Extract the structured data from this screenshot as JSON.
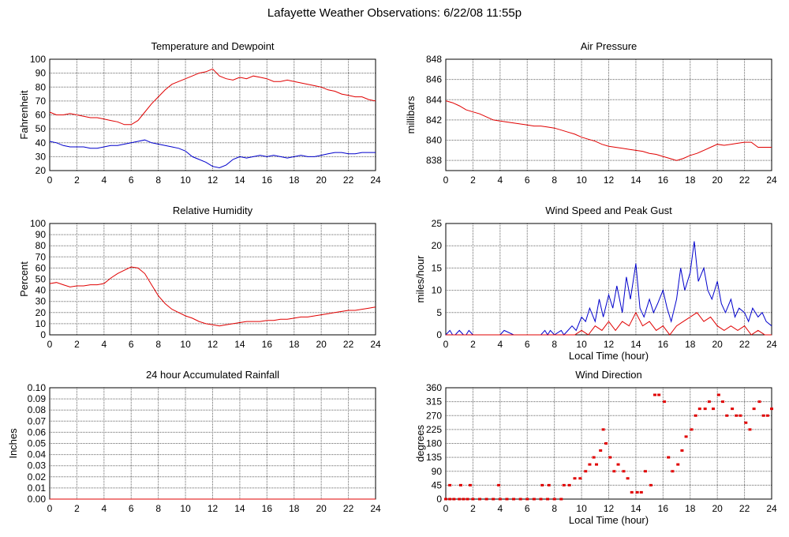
{
  "page_title": "Lafayette Weather Observations: 6/22/08 11:55p",
  "colors": {
    "red": "#e00000",
    "blue": "#0000cc",
    "grid": "#666666"
  },
  "chart_data": [
    {
      "id": "temp",
      "type": "line",
      "title": "Temperature and Dewpoint",
      "ylabel": "Fahrenheit",
      "xlabel": "",
      "xlim": [
        0,
        24
      ],
      "ylim": [
        20,
        100
      ],
      "xticks": [
        0,
        2,
        4,
        6,
        8,
        10,
        12,
        14,
        16,
        18,
        20,
        22,
        24
      ],
      "yticks": [
        20,
        30,
        40,
        50,
        60,
        70,
        80,
        90,
        100
      ],
      "series": [
        {
          "color": "red",
          "x": [
            0,
            0.5,
            1,
            1.5,
            2,
            2.5,
            3,
            3.5,
            4,
            4.5,
            5,
            5.5,
            6,
            6.5,
            7,
            7.5,
            8,
            8.5,
            9,
            9.5,
            10,
            10.5,
            11,
            11.5,
            12,
            12.5,
            13,
            13.5,
            14,
            14.5,
            15,
            15.5,
            16,
            16.5,
            17,
            17.5,
            18,
            18.5,
            19,
            19.5,
            20,
            20.5,
            21,
            21.5,
            22,
            22.5,
            23,
            23.5,
            24
          ],
          "y": [
            62,
            60,
            60,
            61,
            60,
            59,
            58,
            58,
            57,
            56,
            55,
            53,
            53,
            56,
            62,
            68,
            73,
            78,
            82,
            84,
            86,
            88,
            90,
            91,
            93,
            88,
            86,
            85,
            87,
            86,
            88,
            87,
            86,
            84,
            84,
            85,
            84,
            83,
            82,
            81,
            80,
            78,
            77,
            75,
            74,
            73,
            73,
            71,
            70
          ]
        },
        {
          "color": "blue",
          "x": [
            0,
            0.5,
            1,
            1.5,
            2,
            2.5,
            3,
            3.5,
            4,
            4.5,
            5,
            5.5,
            6,
            6.5,
            7,
            7.5,
            8,
            8.5,
            9,
            9.5,
            10,
            10.5,
            11,
            11.5,
            12,
            12.5,
            13,
            13.5,
            14,
            14.5,
            15,
            15.5,
            16,
            16.5,
            17,
            17.5,
            18,
            18.5,
            19,
            19.5,
            20,
            20.5,
            21,
            21.5,
            22,
            22.5,
            23,
            23.5,
            24
          ],
          "y": [
            41,
            40,
            38,
            37,
            37,
            37,
            36,
            36,
            37,
            38,
            38,
            39,
            40,
            41,
            42,
            40,
            39,
            38,
            37,
            36,
            34,
            30,
            28,
            26,
            23,
            22,
            24,
            28,
            30,
            29,
            30,
            31,
            30,
            31,
            30,
            29,
            30,
            31,
            30,
            30,
            31,
            32,
            33,
            33,
            32,
            32,
            33,
            33,
            33
          ]
        }
      ]
    },
    {
      "id": "press",
      "type": "line",
      "title": "Air Pressure",
      "ylabel": "millibars",
      "xlabel": "",
      "xlim": [
        0,
        24
      ],
      "ylim": [
        837,
        848
      ],
      "xticks": [
        0,
        2,
        4,
        6,
        8,
        10,
        12,
        14,
        16,
        18,
        20,
        22,
        24
      ],
      "yticks": [
        838,
        840,
        842,
        844,
        846,
        848
      ],
      "series": [
        {
          "color": "red",
          "x": [
            0,
            0.5,
            1,
            1.5,
            2,
            2.5,
            3,
            3.5,
            4,
            4.5,
            5,
            5.5,
            6,
            6.5,
            7,
            7.5,
            8,
            8.5,
            9,
            9.5,
            10,
            10.5,
            11,
            11.5,
            12,
            12.5,
            13,
            13.5,
            14,
            14.5,
            15,
            15.5,
            16,
            16.5,
            17,
            17.5,
            18,
            18.5,
            19,
            19.5,
            20,
            20.5,
            21,
            21.5,
            22,
            22.5,
            23,
            23.5,
            24
          ],
          "y": [
            843.9,
            843.7,
            843.4,
            843.0,
            842.8,
            842.6,
            842.3,
            842.0,
            841.9,
            841.8,
            841.7,
            841.6,
            841.5,
            841.4,
            841.4,
            841.3,
            841.2,
            841.0,
            840.8,
            840.6,
            840.3,
            840.1,
            839.9,
            839.6,
            839.4,
            839.3,
            839.2,
            839.1,
            839.0,
            838.9,
            838.7,
            838.6,
            838.4,
            838.2,
            838.0,
            838.2,
            838.5,
            838.7,
            839.0,
            839.3,
            839.6,
            839.5,
            839.6,
            839.7,
            839.8,
            839.8,
            839.3,
            839.3,
            839.3
          ]
        }
      ]
    },
    {
      "id": "rh",
      "type": "line",
      "title": "Relative Humidity",
      "ylabel": "Percent",
      "xlabel": "",
      "xlim": [
        0,
        24
      ],
      "ylim": [
        0,
        100
      ],
      "xticks": [
        0,
        2,
        4,
        6,
        8,
        10,
        12,
        14,
        16,
        18,
        20,
        22,
        24
      ],
      "yticks": [
        0,
        10,
        20,
        30,
        40,
        50,
        60,
        70,
        80,
        90,
        100
      ],
      "series": [
        {
          "color": "red",
          "x": [
            0,
            0.5,
            1,
            1.5,
            2,
            2.5,
            3,
            3.5,
            4,
            4.5,
            5,
            5.5,
            6,
            6.5,
            7,
            7.5,
            8,
            8.5,
            9,
            9.5,
            10,
            10.5,
            11,
            11.5,
            12,
            12.5,
            13,
            13.5,
            14,
            14.5,
            15,
            15.5,
            16,
            16.5,
            17,
            17.5,
            18,
            18.5,
            19,
            19.5,
            20,
            20.5,
            21,
            21.5,
            22,
            22.5,
            23,
            23.5,
            24
          ],
          "y": [
            46,
            47,
            45,
            43,
            44,
            44,
            45,
            45,
            46,
            51,
            55,
            58,
            61,
            60,
            55,
            45,
            35,
            28,
            23,
            20,
            17,
            15,
            12,
            10,
            9,
            8,
            9,
            10,
            11,
            12,
            12,
            12,
            13,
            13,
            14,
            14,
            15,
            16,
            16,
            17,
            18,
            19,
            20,
            21,
            22,
            22,
            23,
            24,
            25
          ]
        }
      ]
    },
    {
      "id": "wind",
      "type": "line",
      "title": "Wind Speed and Peak Gust",
      "ylabel": "miles/hour",
      "xlabel": "Local Time (hour)",
      "xlim": [
        0,
        24
      ],
      "ylim": [
        0,
        25
      ],
      "xticks": [
        0,
        2,
        4,
        6,
        8,
        10,
        12,
        14,
        16,
        18,
        20,
        22,
        24
      ],
      "yticks": [
        0,
        5,
        10,
        15,
        20,
        25
      ],
      "series": [
        {
          "color": "blue",
          "x": [
            0,
            0.3,
            0.5,
            0.7,
            1,
            1.3,
            1.5,
            1.7,
            2,
            2.5,
            3,
            3.5,
            4,
            4.3,
            5,
            6,
            7,
            7.3,
            7.5,
            7.7,
            8,
            8.5,
            8.7,
            9,
            9.3,
            9.6,
            10,
            10.3,
            10.6,
            11,
            11.3,
            11.6,
            12,
            12.3,
            12.6,
            13,
            13.3,
            13.6,
            14,
            14.3,
            14.6,
            15,
            15.3,
            15.6,
            16,
            16.3,
            16.6,
            17,
            17.3,
            17.6,
            18,
            18.3,
            18.6,
            19,
            19.3,
            19.6,
            20,
            20.3,
            20.6,
            21,
            21.3,
            21.6,
            22,
            22.3,
            22.6,
            23,
            23.3,
            23.6,
            24
          ],
          "y": [
            0,
            1,
            0,
            0,
            1,
            0,
            0,
            1,
            0,
            0,
            0,
            0,
            0,
            1,
            0,
            0,
            0,
            1,
            0,
            1,
            0,
            1,
            0,
            1,
            2,
            1,
            4,
            3,
            6,
            3,
            8,
            4,
            9,
            6,
            11,
            5,
            13,
            8,
            16,
            6,
            4,
            8,
            5,
            7,
            10,
            6,
            3,
            8,
            15,
            10,
            14,
            21,
            12,
            15,
            10,
            8,
            12,
            7,
            5,
            8,
            4,
            6,
            5,
            3,
            6,
            4,
            5,
            3,
            2
          ]
        },
        {
          "color": "red",
          "x": [
            0,
            8,
            8.5,
            9,
            9.5,
            10,
            10.5,
            11,
            11.5,
            12,
            12.5,
            13,
            13.5,
            14,
            14.5,
            15,
            15.5,
            16,
            16.5,
            17,
            17.5,
            18,
            18.5,
            19,
            19.5,
            20,
            20.5,
            21,
            21.5,
            22,
            22.5,
            23,
            23.5,
            24
          ],
          "y": [
            0,
            0,
            0,
            0,
            0,
            1,
            0,
            2,
            1,
            3,
            1,
            3,
            2,
            5,
            2,
            3,
            1,
            2,
            0,
            2,
            3,
            4,
            5,
            3,
            4,
            2,
            1,
            2,
            1,
            2,
            0,
            1,
            0,
            0
          ]
        }
      ]
    },
    {
      "id": "rain",
      "type": "line",
      "title": "24 hour Accumulated Rainfall",
      "ylabel": "Inches",
      "xlabel": "",
      "xlim": [
        0,
        24
      ],
      "ylim": [
        0,
        0.1
      ],
      "xticks": [
        0,
        2,
        4,
        6,
        8,
        10,
        12,
        14,
        16,
        18,
        20,
        22,
        24
      ],
      "yticks": [
        "0.00",
        "0.01",
        "0.02",
        "0.03",
        "0.04",
        "0.05",
        "0.06",
        "0.07",
        "0.08",
        "0.09",
        "0.10"
      ],
      "series": [
        {
          "color": "red",
          "x": [
            0,
            24
          ],
          "y": [
            0,
            0
          ]
        }
      ]
    },
    {
      "id": "dir",
      "type": "scatter",
      "title": "Wind Direction",
      "ylabel": "degrees",
      "xlabel": "Local Time (hour)",
      "xlim": [
        0,
        24
      ],
      "ylim": [
        0,
        360
      ],
      "xticks": [
        0,
        2,
        4,
        6,
        8,
        10,
        12,
        14,
        16,
        18,
        20,
        22,
        24
      ],
      "yticks": [
        0,
        45,
        90,
        135,
        180,
        225,
        270,
        315,
        360
      ],
      "series": [
        {
          "color": "red",
          "x": [
            0,
            0.3,
            0.6,
            1,
            1.3,
            1.6,
            2,
            2.5,
            3,
            3.5,
            4,
            4.5,
            5,
            5.5,
            6,
            6.5,
            7,
            7.5,
            8,
            8.5,
            0.3,
            1.1,
            1.8,
            3.9,
            7.1,
            7.6,
            8.7,
            9.1,
            9.5,
            9.9,
            10.3,
            10.6,
            10.9,
            11.1,
            11.4,
            11.6,
            11.8,
            12.1,
            12.4,
            12.7,
            13.1,
            13.4,
            13.7,
            14.1,
            14.4,
            14.7,
            15.1,
            15.4,
            15.7,
            16.1,
            16.4,
            16.7,
            17.1,
            17.4,
            17.7,
            18.1,
            18.4,
            18.7,
            19.1,
            19.4,
            19.7,
            20.1,
            20.4,
            20.7,
            21.1,
            21.4,
            21.7,
            22.1,
            22.4,
            22.7,
            23.1,
            23.4,
            23.7,
            24
          ],
          "y": [
            0,
            0,
            0,
            0,
            0,
            0,
            0,
            0,
            0,
            0,
            0,
            0,
            0,
            0,
            0,
            0,
            0,
            0,
            0,
            0,
            45,
            45,
            45,
            45,
            45,
            45,
            45,
            45,
            67,
            67,
            90,
            112,
            135,
            112,
            157,
            225,
            180,
            135,
            90,
            112,
            90,
            67,
            22,
            22,
            22,
            90,
            45,
            337,
            337,
            315,
            135,
            90,
            112,
            157,
            202,
            225,
            270,
            292,
            292,
            315,
            292,
            337,
            315,
            270,
            292,
            270,
            270,
            247,
            225,
            292,
            315,
            270,
            270,
            292
          ]
        }
      ]
    }
  ]
}
